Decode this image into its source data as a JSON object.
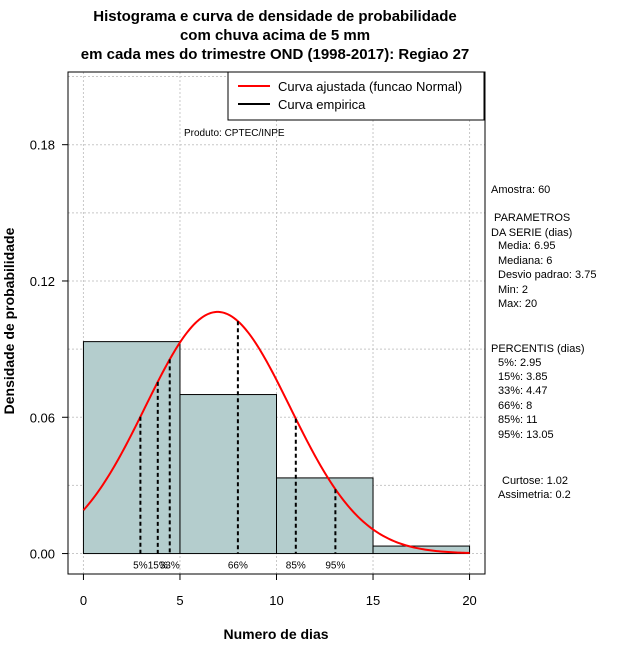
{
  "chart_data": {
    "type": "histogram",
    "title_lines": [
      "Histograma e curva de densidade de probabilidade",
      "com chuva acima de 5 mm",
      "em cada mes do trimestre OND (1998-2017): Regiao 27"
    ],
    "xlabel": "Numero de dias",
    "ylabel": "Densidade de probabilidade",
    "xlim": [
      -0.8,
      20.8
    ],
    "ylim": [
      -0.009,
      0.212
    ],
    "x_ticks": [
      0,
      5,
      10,
      15,
      20
    ],
    "y_ticks": [
      0.0,
      0.06,
      0.12,
      0.18
    ],
    "y_tick_labels": [
      "0.00",
      "0.06",
      "0.12",
      "0.18"
    ],
    "bins": [
      {
        "from": 0,
        "to": 5,
        "density": 0.0933
      },
      {
        "from": 5,
        "to": 10,
        "density": 0.07
      },
      {
        "from": 10,
        "to": 15,
        "density": 0.0333
      },
      {
        "from": 15,
        "to": 20,
        "density": 0.0033
      }
    ],
    "fitted_curve": {
      "name": "Curva ajustada (funcao Normal)",
      "mean": 6.95,
      "sd": 3.75,
      "color": "#ff0000"
    },
    "empirical_curve": {
      "name": "Curva empirica",
      "color": "#000000"
    },
    "bar_color": "#b4cdcd",
    "percentile_lines": [
      {
        "label": "5%",
        "x": 2.95
      },
      {
        "label": "15%",
        "x": 3.85
      },
      {
        "label": "33%",
        "x": 4.47
      },
      {
        "label": "66%",
        "x": 8
      },
      {
        "label": "85%",
        "x": 11
      },
      {
        "label": "95%",
        "x": 13.05
      }
    ],
    "legend": [
      "Curva ajustada (funcao Normal)",
      "Curva empirica"
    ],
    "legend_position": "top-right",
    "annotation": "Produto: CPTEC/INPE",
    "grid": true
  },
  "side_panel": {
    "amostra": "Amostra: 60",
    "param_header": [
      " PARAMETROS",
      "DA SERIE (dias)"
    ],
    "params": [
      "Media: 6.95",
      "Mediana: 6",
      "Desvio padrao: 3.75",
      "Min: 2",
      "Max: 20"
    ],
    "percentis_header": "PERCENTIS (dias)",
    "percentis": [
      "5%: 2.95",
      "15%: 3.85",
      "33%: 4.47",
      "66%: 8",
      "85%: 11",
      "95%: 13.05"
    ],
    "moments": [
      "Curtose: 1.02",
      "Assimetria: 0.2"
    ]
  }
}
